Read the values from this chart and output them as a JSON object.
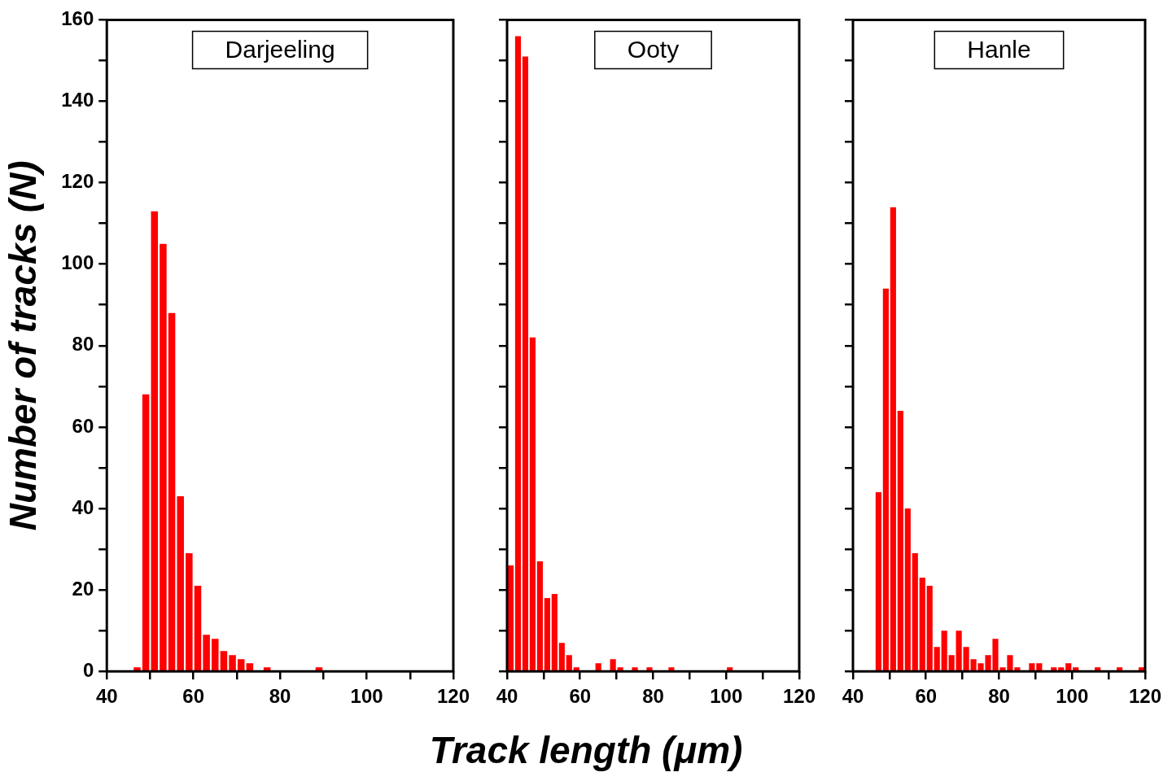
{
  "chart_data": [
    {
      "type": "histogram",
      "title": "Darjeeling",
      "ylabel": "Number of tracks (N)",
      "color": "#ff0000",
      "bins": [
        46,
        48,
        50,
        52,
        54,
        56,
        58,
        60,
        62,
        64,
        66,
        68,
        70,
        72,
        74,
        76,
        78,
        80,
        82,
        84,
        86,
        88,
        90
      ],
      "values": [
        1,
        68,
        113,
        105,
        88,
        43,
        29,
        21,
        9,
        8,
        5,
        4,
        3,
        2,
        0,
        1,
        0,
        0,
        0,
        0,
        0,
        1
      ],
      "xlim": [
        40,
        120
      ],
      "ylim": [
        0,
        160
      ],
      "xticks": [
        40,
        {
          "value": 50,
          "label": null
        },
        60,
        {
          "value": 70,
          "label": null
        },
        80,
        {
          "value": 90,
          "label": null
        },
        100,
        {
          "value": 110,
          "label": null
        },
        120
      ],
      "yticks": [
        0,
        {
          "value": 10,
          "label": null
        },
        20,
        {
          "value": 30,
          "label": null
        },
        40,
        {
          "value": 50,
          "label": null
        },
        60,
        {
          "value": 70,
          "label": null
        },
        80,
        {
          "value": 90,
          "label": null
        },
        100,
        {
          "value": 110,
          "label": null
        },
        120,
        {
          "value": 130,
          "label": null
        },
        140,
        {
          "value": 150,
          "label": null
        },
        160
      ]
    },
    {
      "type": "histogram",
      "title": "Ooty",
      "xlabel": "Track length (μm)",
      "color": "#ff0000",
      "tick_labels": "x",
      "bins": [
        40,
        42,
        44,
        46,
        48,
        50,
        52,
        54,
        56,
        58,
        60,
        62,
        64,
        66,
        68,
        70,
        72,
        74,
        76,
        78,
        80,
        82,
        84,
        86,
        88,
        90,
        92,
        94,
        96,
        98,
        100,
        102
      ],
      "values": [
        26,
        156,
        151,
        82,
        27,
        18,
        19,
        7,
        4,
        1,
        0,
        0,
        2,
        0,
        3,
        1,
        0,
        1,
        0,
        1,
        0,
        0,
        1,
        0,
        0,
        0,
        0,
        0,
        0,
        0,
        1
      ],
      "xlim": [
        40,
        120
      ],
      "ylim": [
        0,
        160
      ],
      "xticks": [
        40,
        {
          "value": 50,
          "label": null
        },
        60,
        {
          "value": 70,
          "label": null
        },
        80,
        {
          "value": 90,
          "label": null
        },
        100,
        {
          "value": 110,
          "label": null
        },
        120
      ],
      "yticks": [
        0,
        {
          "value": 10,
          "label": null
        },
        20,
        {
          "value": 30,
          "label": null
        },
        40,
        {
          "value": 50,
          "label": null
        },
        60,
        {
          "value": 70,
          "label": null
        },
        80,
        {
          "value": 90,
          "label": null
        },
        100,
        {
          "value": 110,
          "label": null
        },
        120,
        {
          "value": 130,
          "label": null
        },
        140,
        {
          "value": 150,
          "label": null
        },
        160
      ]
    },
    {
      "type": "histogram",
      "title": "Hanle",
      "color": "#ff0000",
      "tick_labels": "x",
      "bins": [
        46,
        48,
        50,
        52,
        54,
        56,
        58,
        60,
        62,
        64,
        66,
        68,
        70,
        72,
        74,
        76,
        78,
        80,
        82,
        84,
        86,
        88,
        90,
        92,
        94,
        96,
        98,
        100,
        102,
        104,
        106,
        108,
        110,
        112,
        114,
        116,
        118,
        120
      ],
      "values": [
        44,
        94,
        114,
        64,
        40,
        29,
        23,
        21,
        6,
        10,
        4,
        10,
        6,
        3,
        2,
        4,
        8,
        1,
        4,
        1,
        0,
        2,
        2,
        0,
        1,
        1,
        2,
        1,
        0,
        0,
        1,
        0,
        0,
        1,
        0,
        0,
        1
      ],
      "xlim": [
        40,
        120
      ],
      "ylim": [
        0,
        160
      ],
      "xticks": [
        40,
        {
          "value": 50,
          "label": null
        },
        60,
        {
          "value": 70,
          "label": null
        },
        80,
        {
          "value": 90,
          "label": null
        },
        100,
        {
          "value": 110,
          "label": null
        },
        120
      ],
      "yticks": [
        0,
        {
          "value": 10,
          "label": null
        },
        20,
        {
          "value": 30,
          "label": null
        },
        40,
        {
          "value": 50,
          "label": null
        },
        60,
        {
          "value": 70,
          "label": null
        },
        80,
        {
          "value": 90,
          "label": null
        },
        100,
        {
          "value": 110,
          "label": null
        },
        120,
        {
          "value": 130,
          "label": null
        },
        140,
        {
          "value": 150,
          "label": null
        },
        160
      ]
    }
  ]
}
